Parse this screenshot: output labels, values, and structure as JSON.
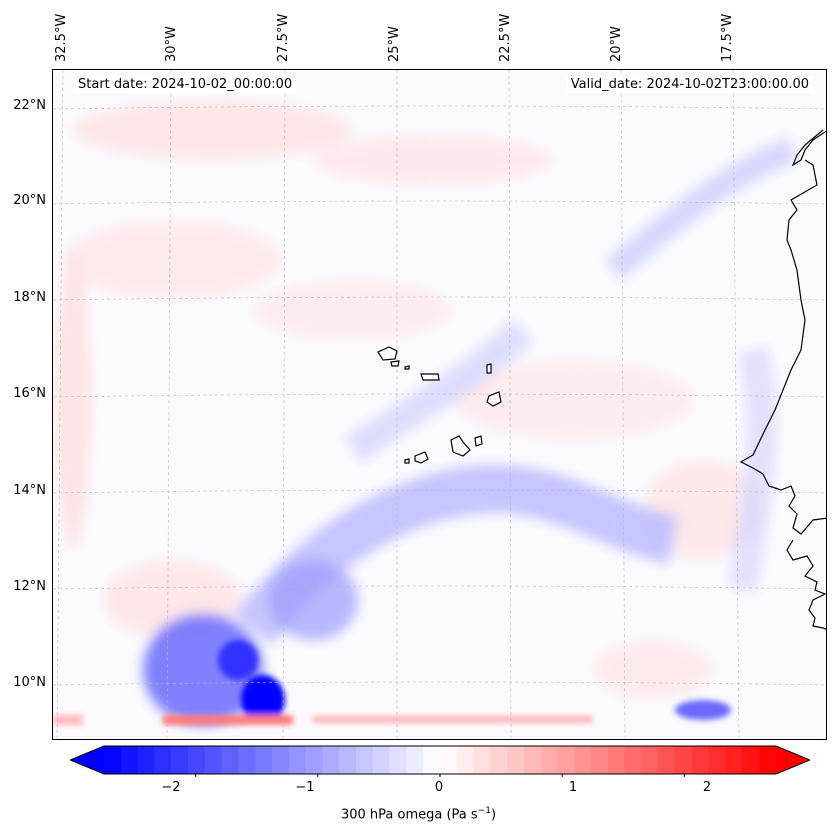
{
  "annotations": {
    "start_date": "Start date: 2024-10-02_00:00:00",
    "valid_date": "Valid_date: 2024-10-02T23:00:00.00"
  },
  "longitude_labels": [
    "32.5°W",
    "30°W",
    "27.5°W",
    "25°W",
    "22.5°W",
    "20°W",
    "17.5°W"
  ],
  "latitude_labels": [
    "22°N",
    "20°N",
    "18°N",
    "16°N",
    "14°N",
    "12°N",
    "10°N"
  ],
  "colorbar": {
    "label_prefix": "300 hPa omega (Pa s",
    "label_exponent": "−1",
    "label_suffix": ")",
    "ticks": [
      "−2",
      "−1",
      "0",
      "1",
      "2"
    ],
    "range": [
      -2.75,
      2.75
    ],
    "colormap": "bwr",
    "extend": "both"
  },
  "colors": {
    "negative_max": "#0000ff",
    "zero": "#ffffff",
    "positive_max": "#ff0000",
    "coastline": "#000000"
  }
}
